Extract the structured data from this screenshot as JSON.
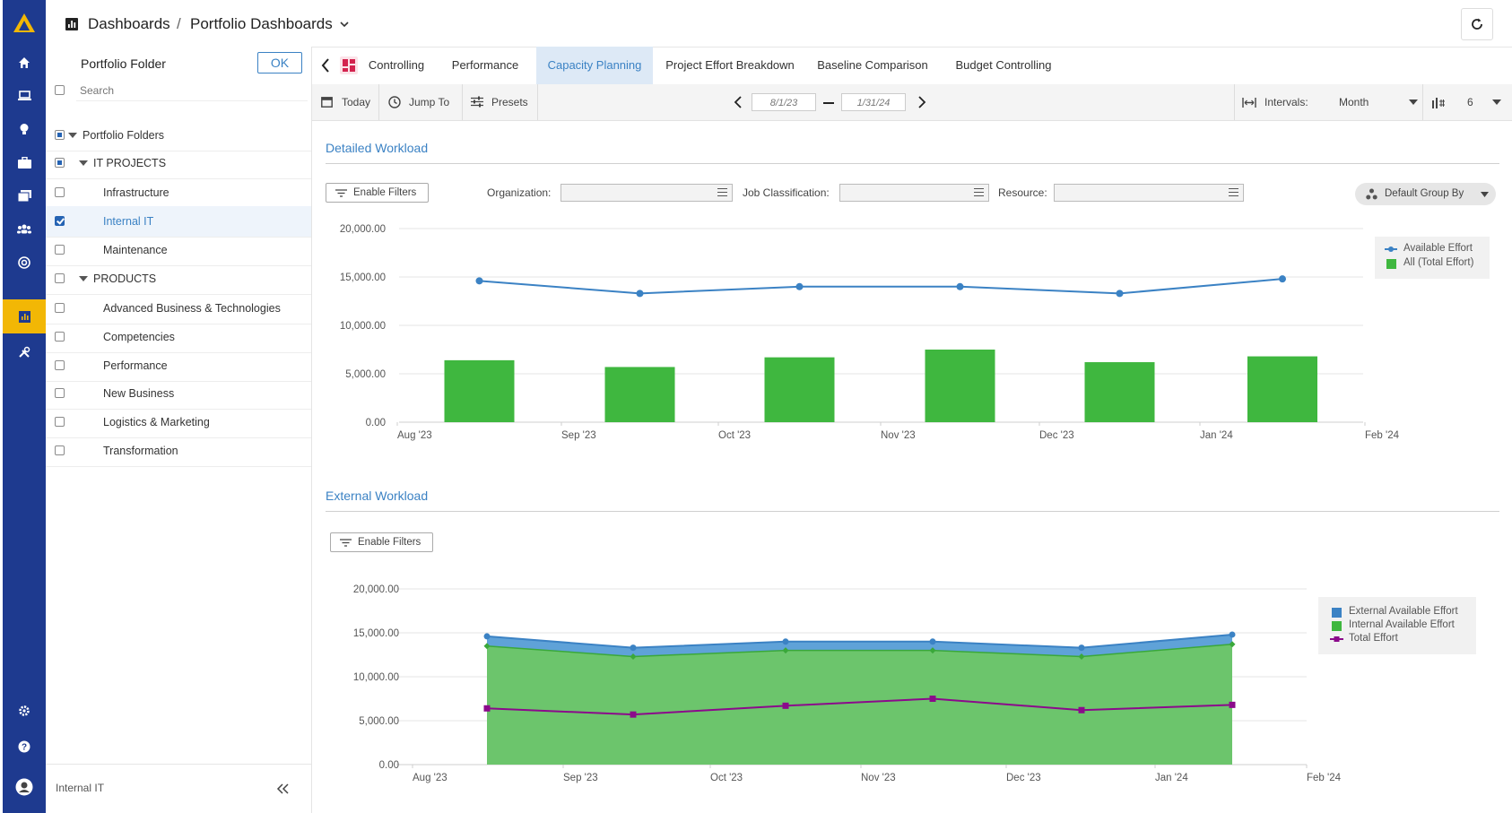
{
  "header": {
    "crumb_root": "Dashboards",
    "crumb_sep": "/",
    "crumb_current": "Portfolio Dashboards"
  },
  "sidebar": {
    "title": "Portfolio Folder",
    "ok_label": "OK",
    "search_placeholder": "Search",
    "footer_label": "Internal IT",
    "items": [
      {
        "label": "Portfolio Folders",
        "state": "partial",
        "level": 0,
        "caret": true
      },
      {
        "label": "IT PROJECTS",
        "state": "partial",
        "level": 1,
        "caret": true
      },
      {
        "label": "Infrastructure",
        "state": "none",
        "level": 2,
        "caret": false
      },
      {
        "label": "Internal IT",
        "state": "checked",
        "level": 2,
        "caret": false
      },
      {
        "label": "Maintenance",
        "state": "none",
        "level": 2,
        "caret": false
      },
      {
        "label": "PRODUCTS",
        "state": "none",
        "level": 1,
        "caret": true
      },
      {
        "label": "Advanced Business & Technologies",
        "state": "none",
        "level": 2,
        "caret": false
      },
      {
        "label": "Competencies",
        "state": "none",
        "level": 2,
        "caret": false
      },
      {
        "label": "Performance",
        "state": "none",
        "level": 2,
        "caret": false
      },
      {
        "label": "New Business",
        "state": "none",
        "level": 2,
        "caret": false
      },
      {
        "label": "Logistics & Marketing",
        "state": "none",
        "level": 2,
        "caret": false
      },
      {
        "label": "Transformation",
        "state": "none",
        "level": 2,
        "caret": false
      }
    ]
  },
  "tabs": [
    {
      "label": "Controlling"
    },
    {
      "label": "Performance"
    },
    {
      "label": "Capacity Planning",
      "active": true
    },
    {
      "label": "Project Effort Breakdown"
    },
    {
      "label": "Baseline Comparison"
    },
    {
      "label": "Budget Controlling"
    }
  ],
  "toolbar": {
    "today": "Today",
    "jump_to": "Jump To",
    "presets": "Presets",
    "date_from": "8/1/23",
    "date_to": "1/31/24",
    "intervals_label": "Intervals:",
    "interval_value": "Month",
    "count_value": "6"
  },
  "detailed": {
    "title": "Detailed Workload",
    "enable_filters": "Enable Filters",
    "org_label": "Organization:",
    "job_label": "Job Classification:",
    "resource_label": "Resource:",
    "group_by": "Default Group By"
  },
  "external": {
    "title": "External Workload",
    "enable_filters": "Enable Filters"
  },
  "colors": {
    "blue": "#3b82c4",
    "green": "#3fb73f",
    "area_green": "#6cc56c",
    "purple": "#8b0a8b",
    "rail": "#1e3a8f",
    "accent": "#f2b705"
  },
  "rail_icons": [
    "home-icon",
    "laptop-icon",
    "lightbulb-icon",
    "briefcase-icon",
    "folders-icon",
    "team-icon",
    "target-icon",
    "dashboard-icon",
    "tools-icon"
  ],
  "chart_data": [
    {
      "type": "bar",
      "title": "Detailed Workload",
      "x_ticks": [
        "Aug '23",
        "Sep '23",
        "Oct '23",
        "Nov '23",
        "Dec '23",
        "Jan '24",
        "Feb '24"
      ],
      "y_ticks": [
        "0.00",
        "5,000.00",
        "10,000.00",
        "15,000.00",
        "20,000.00"
      ],
      "ylim": [
        0,
        20000
      ],
      "categories": [
        "Aug '23",
        "Sep '23",
        "Oct '23",
        "Nov '23",
        "Dec '23",
        "Jan '24"
      ],
      "series": [
        {
          "name": "Available Effort",
          "kind": "line",
          "values": [
            14600,
            13300,
            14000,
            14000,
            13300,
            14800
          ]
        },
        {
          "name": "All (Total Effort)",
          "kind": "bar",
          "values": [
            6400,
            5700,
            6700,
            7500,
            6200,
            6800
          ]
        }
      ],
      "legend": "top-right"
    },
    {
      "type": "area",
      "title": "External Workload",
      "x_ticks": [
        "Aug '23",
        "Sep '23",
        "Oct '23",
        "Nov '23",
        "Dec '23",
        "Jan '24",
        "Feb '24"
      ],
      "y_ticks": [
        "0.00",
        "5,000.00",
        "10,000.00",
        "15,000.00",
        "20,000.00"
      ],
      "ylim": [
        0,
        20000
      ],
      "categories": [
        "Aug '23",
        "Sep '23",
        "Oct '23",
        "Nov '23",
        "Dec '23",
        "Jan '24"
      ],
      "series": [
        {
          "name": "External Available Effort",
          "kind": "area",
          "values": [
            14600,
            13300,
            14000,
            14000,
            13300,
            14800
          ]
        },
        {
          "name": "Internal Available Effort",
          "kind": "area",
          "values": [
            13500,
            12300,
            13000,
            13000,
            12300,
            13700
          ]
        },
        {
          "name": "Total Effort",
          "kind": "line",
          "values": [
            6400,
            5700,
            6700,
            7500,
            6200,
            6800
          ]
        }
      ],
      "legend": "top-right"
    }
  ]
}
